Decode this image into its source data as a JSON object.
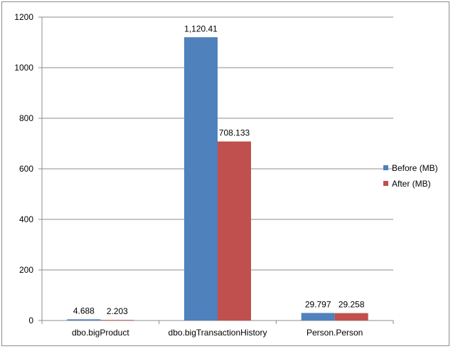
{
  "chart_data": {
    "type": "bar",
    "categories": [
      "dbo.bigProduct",
      "dbo.bigTransactionHistory",
      "Person.Person"
    ],
    "series": [
      {
        "name": "Before (MB)",
        "color": "#4f81bd",
        "values": [
          4.688,
          1120.41,
          29.797
        ],
        "labels": [
          "4.688",
          "1,120.41",
          "29.797"
        ]
      },
      {
        "name": "After (MB)",
        "color": "#c0504d",
        "values": [
          2.203,
          708.133,
          29.258
        ],
        "labels": [
          "2.203",
          "708.133",
          "29.258"
        ]
      }
    ],
    "yticks": [
      "0",
      "200",
      "400",
      "600",
      "800",
      "1000",
      "1200"
    ],
    "ylim": [
      0,
      1200
    ],
    "grid": true,
    "legend_position": "right"
  }
}
